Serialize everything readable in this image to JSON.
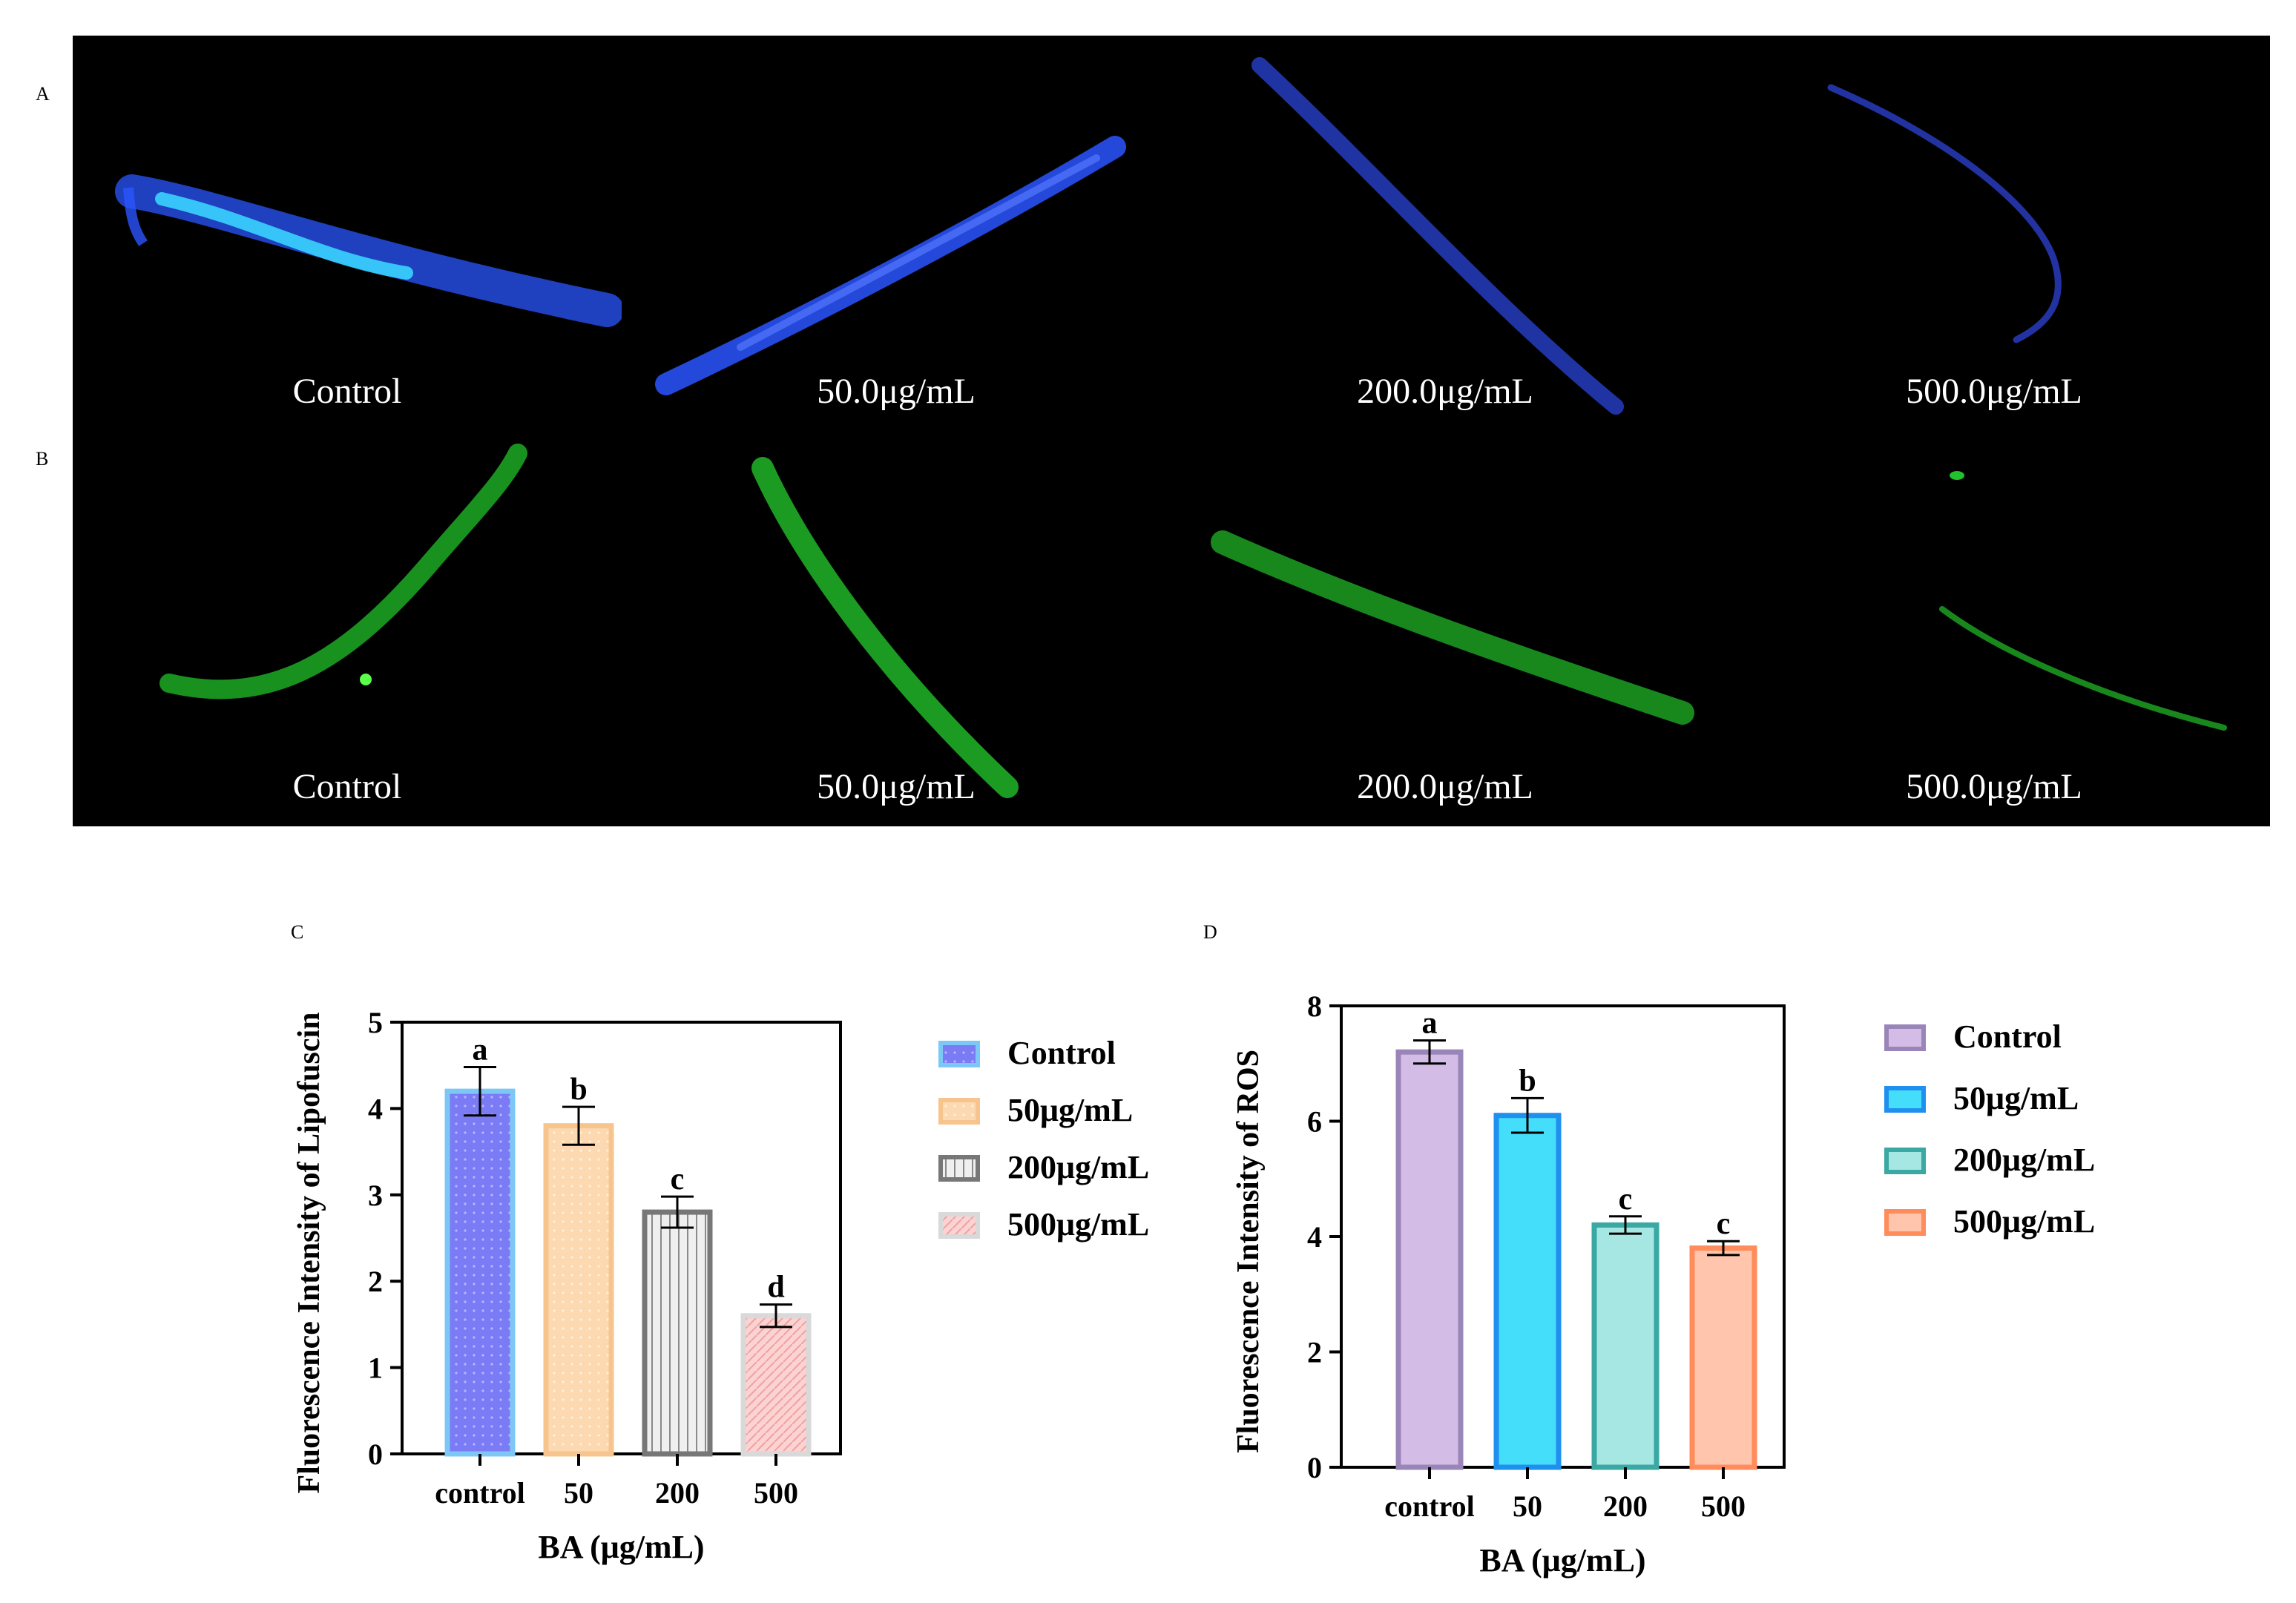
{
  "panels": {
    "a": "A",
    "b": "B",
    "c": "C",
    "d": "D"
  },
  "micrographs": {
    "row_a": {
      "stain": "blue",
      "captions": [
        "Control",
        "50.0μg/mL",
        "200.0μg/mL",
        "500.0μg/mL"
      ],
      "color": "#2a55ff",
      "highlight": "#38d3ff"
    },
    "row_b": {
      "stain": "green",
      "captions": [
        "Control",
        "50.0μg/mL",
        "200.0μg/mL",
        "500.0μg/mL"
      ],
      "color": "#22c22a",
      "highlight": "#5cff4a"
    }
  },
  "chart_data": [
    {
      "id": "c",
      "type": "bar",
      "title": "",
      "categories": [
        "control",
        "50",
        "200",
        "500"
      ],
      "values": [
        4.2,
        3.8,
        2.8,
        1.6
      ],
      "errors": [
        0.28,
        0.22,
        0.18,
        0.13
      ],
      "significance": [
        "a",
        "b",
        "c",
        "d"
      ],
      "xlabel": "BA (μg/mL)",
      "ylabel": "Fluorescence Intensity of Lipofuscin",
      "ylim": [
        0,
        5
      ],
      "yticks": [
        "0",
        "1",
        "2",
        "3",
        "4",
        "5"
      ],
      "legend": [
        "Control",
        "50μg/mL",
        "200μg/mL",
        "500μg/mL"
      ],
      "legend_position": "right",
      "fills": [
        "#7b7bf5",
        "#fcd9b0",
        "#e8e8e8",
        "#f6c6c6"
      ],
      "strokes": [
        "#7cc7f5",
        "#f7c48e",
        "#777777",
        "#d9d9d9"
      ]
    },
    {
      "id": "d",
      "type": "bar",
      "title": "",
      "categories": [
        "control",
        "50",
        "200",
        "500"
      ],
      "values": [
        7.2,
        6.1,
        4.2,
        3.8
      ],
      "errors": [
        0.2,
        0.3,
        0.15,
        0.12
      ],
      "significance": [
        "a",
        "b",
        "c",
        "c"
      ],
      "xlabel": "BA (μg/mL)",
      "ylabel": "Fluorescence Intensity of ROS",
      "ylim": [
        0,
        8
      ],
      "yticks": [
        "0",
        "2",
        "4",
        "6",
        "8"
      ],
      "legend": [
        "Control",
        "50μg/mL",
        "200μg/mL",
        "500μg/mL"
      ],
      "legend_position": "right",
      "fills": [
        "#d3bde6",
        "#45defa",
        "#a6e6e3",
        "#ffc6ad"
      ],
      "strokes": [
        "#9a85b8",
        "#1f8ff0",
        "#3aa8a3",
        "#ff8c5a"
      ]
    }
  ]
}
